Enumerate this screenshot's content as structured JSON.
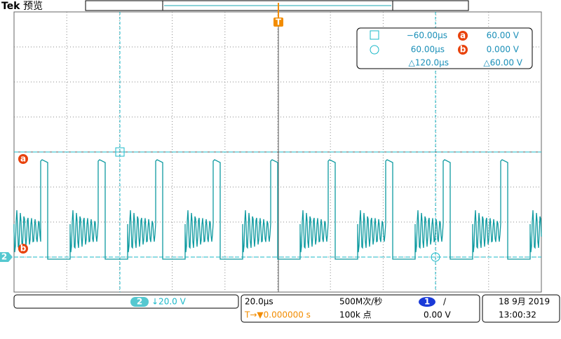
{
  "header": {
    "brand": "Tek",
    "mode": "预览",
    "trigger_marker": "T"
  },
  "readout": {
    "cursor1_time": "−60.00µs",
    "cursor_a_marker": "a",
    "cursor_a_value": "60.00 V",
    "cursor2_time": "60.00µs",
    "cursor_b_marker": "b",
    "cursor_b_value": "0.000 V",
    "delta_time": "△120.0µs",
    "delta_value": "△60.00 V"
  },
  "left_markers": {
    "cursor_a": "a",
    "channel": "2",
    "cursor_b": "b"
  },
  "footer": {
    "channel": "2",
    "scale": "↓20.0 V",
    "timebase": "20.0µs",
    "sample_rate": "500M次/秒",
    "trigger_channel": "1",
    "trigger_slope": "/",
    "date": "18 9月 2019",
    "trigger_position": "T→▼0.000000 s",
    "record_length": "100k 点",
    "trigger_level": "0.00 V",
    "time": "13:00:32"
  }
}
